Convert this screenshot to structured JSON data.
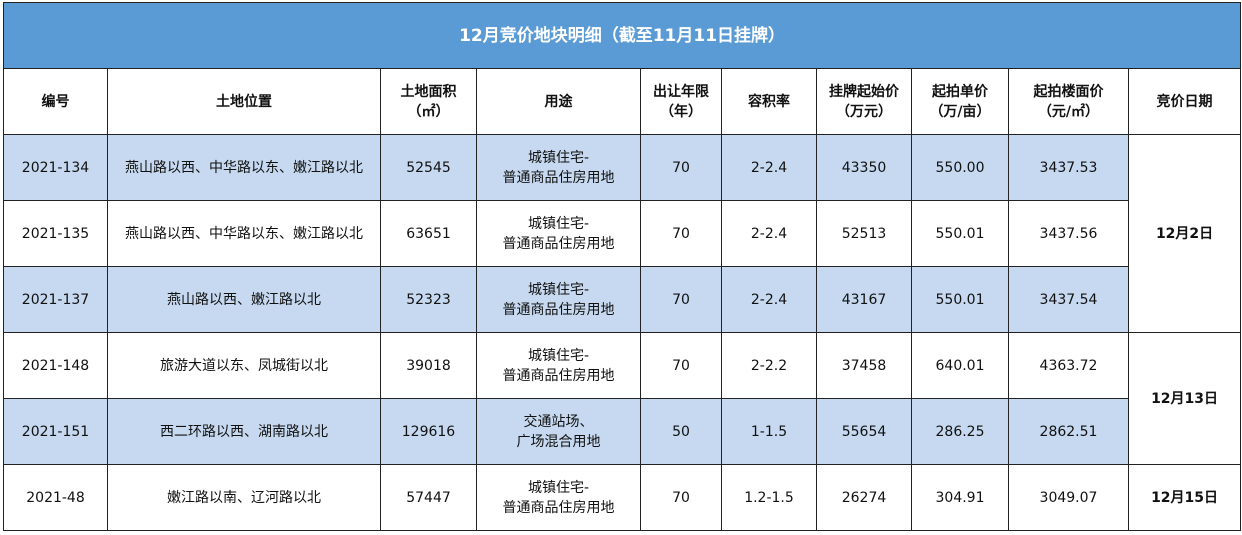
{
  "title": "12月竞价地块明细（截至11月11日挂牌）",
  "headers": [
    "编号",
    "土地位置",
    "土地面积\n（㎡）",
    "用途",
    "出让年限\n（年）",
    "容积率",
    "挂牌起始价\n（万元）",
    "起拍单价\n（万/亩）",
    "起拍楼面价\n（元/㎡）",
    "竞价日期"
  ],
  "rows": [
    {
      "id": "2021-134",
      "loc": "燕山路以西、中华路以东、嫩江路以北",
      "area": "52545",
      "use1": "城镇住宅-",
      "use2": "普通商品住房用地",
      "years": "70",
      "far": "2-2.4",
      "price": "43350",
      "unit": "550.00",
      "floor": "3437.53"
    },
    {
      "id": "2021-135",
      "loc": "燕山路以西、中华路以东、嫩江路以北",
      "area": "63651",
      "use1": "城镇住宅-",
      "use2": "普通商品住房用地",
      "years": "70",
      "far": "2-2.4",
      "price": "52513",
      "unit": "550.01",
      "floor": "3437.56"
    },
    {
      "id": "2021-137",
      "loc": "燕山路以西、嫩江路以北",
      "area": "52323",
      "use1": "城镇住宅-",
      "use2": "普通商品住房用地",
      "years": "70",
      "far": "2-2.4",
      "price": "43167",
      "unit": "550.01",
      "floor": "3437.54"
    },
    {
      "id": "2021-148",
      "loc": "旅游大道以东、凤城街以北",
      "area": "39018",
      "use1": "城镇住宅-",
      "use2": "普通商品住房用地",
      "years": "70",
      "far": "2-2.2",
      "price": "37458",
      "unit": "640.01",
      "floor": "4363.72"
    },
    {
      "id": "2021-151",
      "loc": "西二环路以西、湖南路以北",
      "area": "129616",
      "use1": "交通站场、",
      "use2": "广场混合用地",
      "years": "50",
      "far": "1-1.5",
      "price": "55654",
      "unit": "286.25",
      "floor": "2862.51"
    },
    {
      "id": "2021-48",
      "loc": "嫩江路以南、辽河路以北",
      "area": "57447",
      "use1": "城镇住宅-",
      "use2": "普通商品住房用地",
      "years": "70",
      "far": "1.2-1.5",
      "price": "26274",
      "unit": "304.91",
      "floor": "3049.07"
    }
  ],
  "dates": [
    "12月2日",
    "12月13日",
    "12月15日"
  ],
  "colors": {
    "title_bg": "#5b9bd5",
    "row_alt": "#c6d9f0"
  }
}
